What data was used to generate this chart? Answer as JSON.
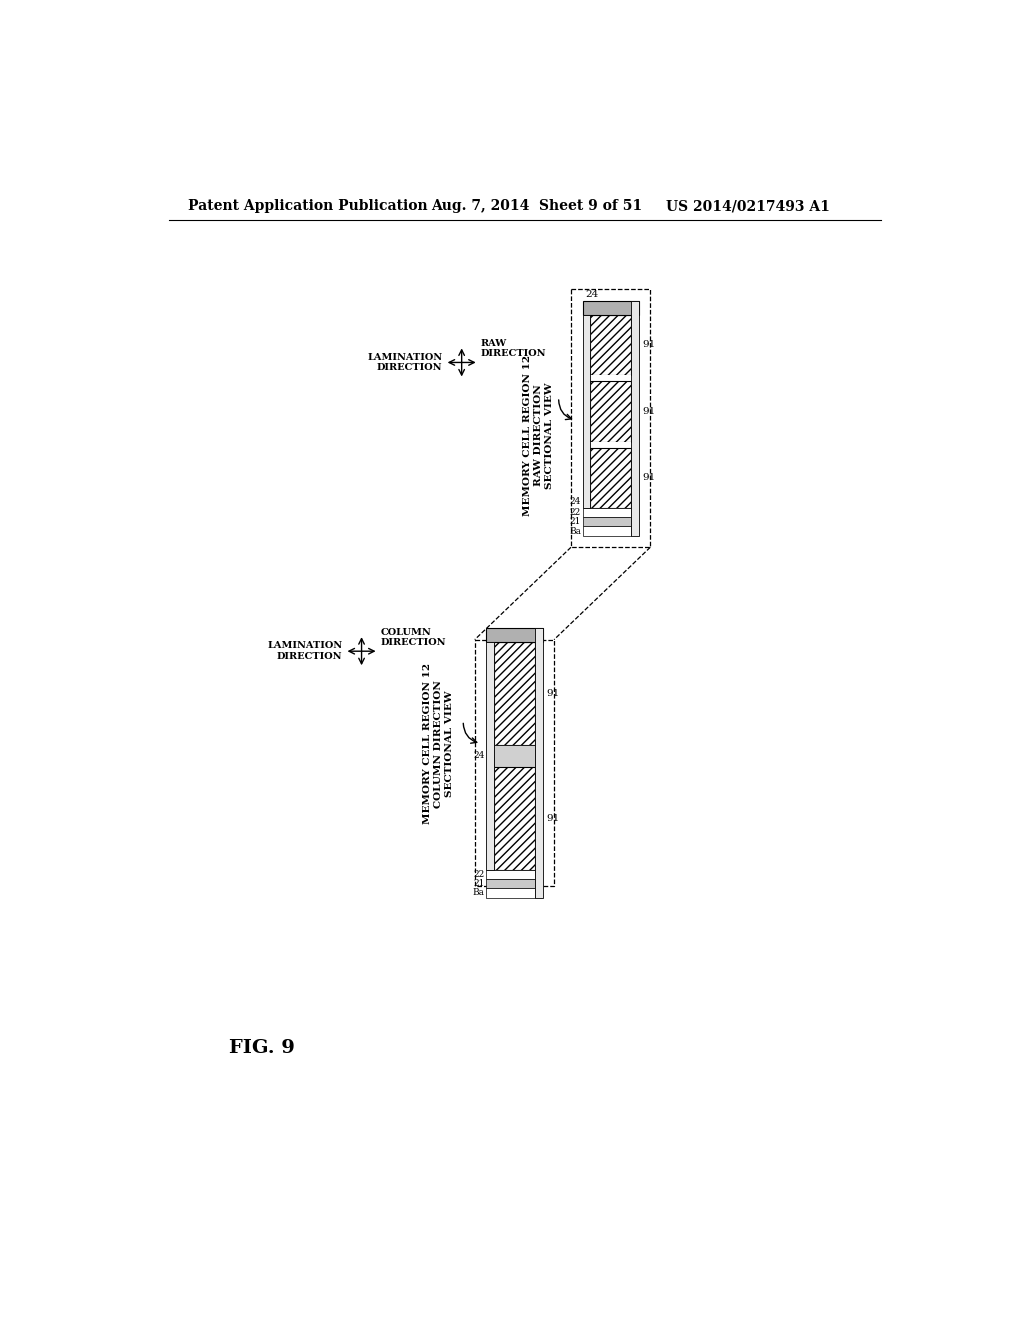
{
  "bg_color": "#ffffff",
  "header_text": "Patent Application Publication",
  "header_date": "Aug. 7, 2014",
  "header_sheet": "Sheet 9 of 51",
  "header_patent": "US 2014/0217493 A1",
  "fig_label": "FIG. 9"
}
